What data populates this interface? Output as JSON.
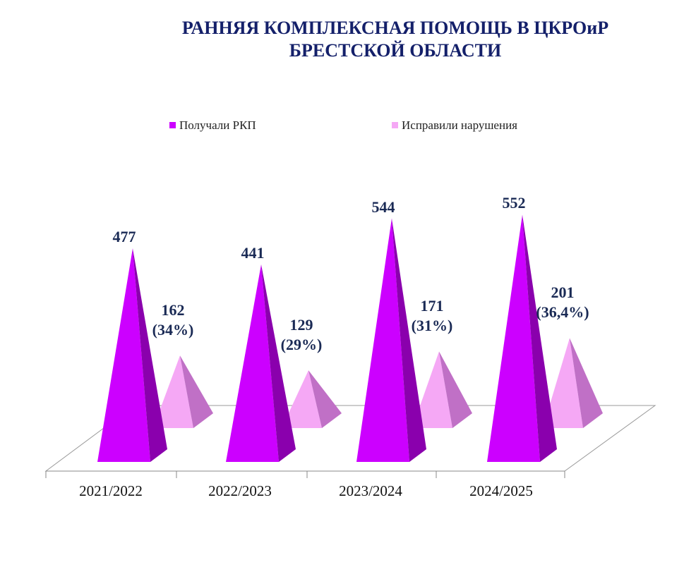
{
  "chart_data": {
    "type": "pyramid3d",
    "title": "РАННЯЯ КОМПЛЕКСНАЯ ПОМОЩЬ В ЦКРОиР\nБРЕСТСКОЙ ОБЛАСТИ",
    "categories": [
      "2021/2022",
      "2022/2023",
      "2023/2024",
      "2024/2025"
    ],
    "series": [
      {
        "name": "Получали РКП",
        "color": "#cc00ff",
        "side_color": "#8a00ad",
        "values": [
          477,
          441,
          544,
          552
        ]
      },
      {
        "name": "Исправили нарушения",
        "color": "#f5a8f5",
        "side_color": "#c070c6",
        "values": [
          162,
          129,
          171,
          201
        ],
        "value_labels": [
          "162\n(34%)",
          "129\n(29%)",
          "171\n(31%)",
          "201\n(36,4%)"
        ]
      }
    ],
    "legend": "top"
  }
}
